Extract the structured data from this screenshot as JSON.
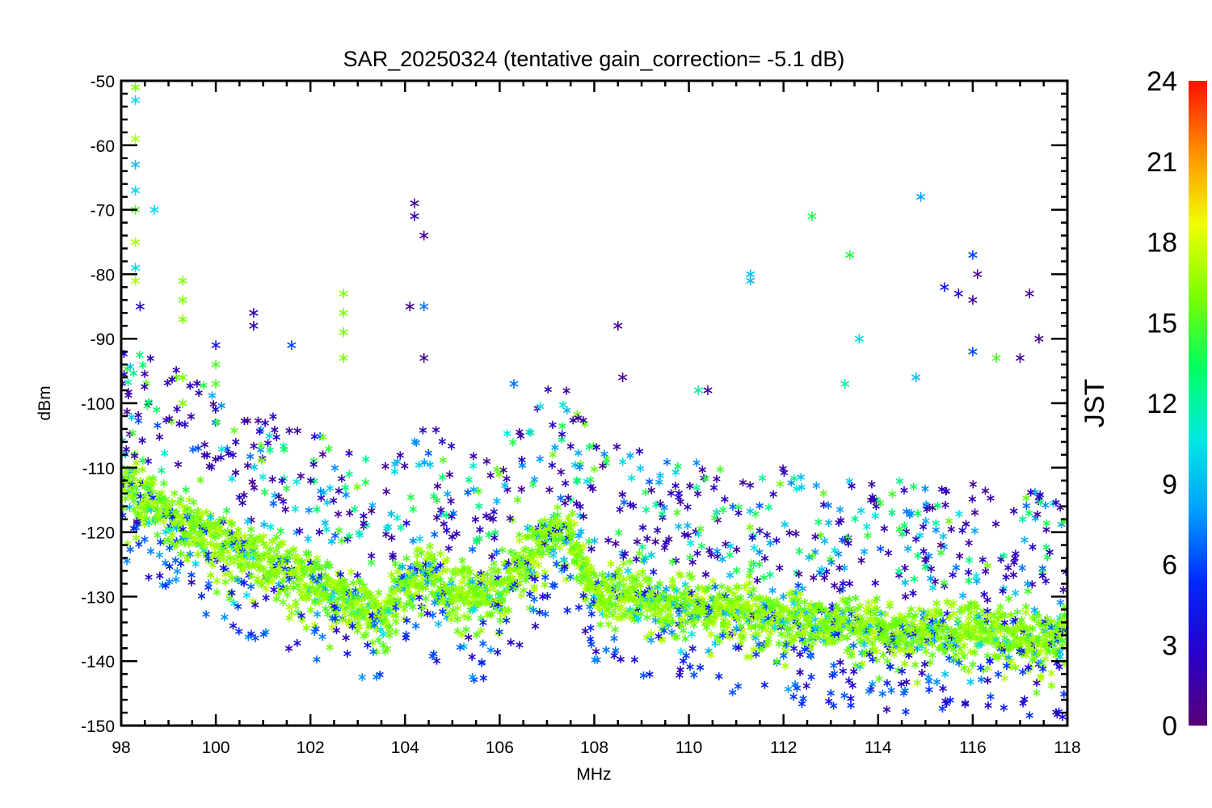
{
  "chart_data": {
    "type": "scatter",
    "title": "SAR_20250324 (tentative gain_correction= -5.1 dB)",
    "xlabel": "MHz",
    "ylabel": "dBm",
    "xlim": [
      98,
      118
    ],
    "ylim": [
      -150,
      -50
    ],
    "xticks": [
      "98",
      "100",
      "102",
      "104",
      "106",
      "108",
      "110",
      "112",
      "114",
      "116",
      "118"
    ],
    "yticks": [
      "-50",
      "-60",
      "-70",
      "-80",
      "-90",
      "-100",
      "-110",
      "-120",
      "-130",
      "-140",
      "-150"
    ],
    "grid": false,
    "marker": "asterisk",
    "colorbar": {
      "label": "JST",
      "range": [
        0,
        24
      ],
      "ticks": [
        "0",
        "3",
        "6",
        "9",
        "12",
        "15",
        "18",
        "21",
        "24"
      ],
      "colormap": "rainbow",
      "colors": [
        "#5a0078",
        "#2800c8",
        "#0028ff",
        "#00a0ff",
        "#00e8e0",
        "#00ff60",
        "#7cff00",
        "#f0ff00",
        "#ff9000",
        "#ff1000"
      ]
    },
    "series": [
      {
        "description": "noise floor (dense band)",
        "points": [
          [
            98.0,
            -112,
            17
          ],
          [
            98.5,
            -115,
            17
          ],
          [
            99.0,
            -117,
            16
          ],
          [
            99.5,
            -119,
            17
          ],
          [
            100.0,
            -121,
            17
          ],
          [
            100.5,
            -123,
            16
          ],
          [
            101.0,
            -124,
            17
          ],
          [
            101.5,
            -126,
            16
          ],
          [
            102.0,
            -127,
            17
          ],
          [
            102.5,
            -129,
            16
          ],
          [
            103.0,
            -131,
            17
          ],
          [
            103.5,
            -133,
            17
          ],
          [
            104.0,
            -128,
            16
          ],
          [
            104.5,
            -126,
            17
          ],
          [
            105.0,
            -129,
            16
          ],
          [
            105.5,
            -130,
            17
          ],
          [
            106.0,
            -129,
            16
          ],
          [
            106.5,
            -124,
            17
          ],
          [
            107.0,
            -120,
            16
          ],
          [
            107.5,
            -121,
            17
          ],
          [
            108.0,
            -129,
            16
          ],
          [
            108.5,
            -129,
            17
          ],
          [
            109.0,
            -130,
            16
          ],
          [
            109.5,
            -131,
            17
          ],
          [
            110.0,
            -131,
            16
          ],
          [
            110.5,
            -132,
            17
          ],
          [
            111.0,
            -132,
            16
          ],
          [
            111.5,
            -133,
            17
          ],
          [
            112.0,
            -133,
            16
          ],
          [
            112.5,
            -134,
            17
          ],
          [
            113.0,
            -134,
            16
          ],
          [
            113.5,
            -134,
            17
          ],
          [
            114.0,
            -135,
            16
          ],
          [
            114.5,
            -135,
            17
          ],
          [
            115.0,
            -135,
            16
          ],
          [
            115.5,
            -135,
            17
          ],
          [
            116.0,
            -135,
            16
          ],
          [
            116.5,
            -136,
            17
          ],
          [
            117.0,
            -136,
            16
          ],
          [
            117.5,
            -136,
            17
          ],
          [
            118.0,
            -136,
            16
          ]
        ]
      },
      {
        "description": "strong stations and outliers",
        "points": [
          [
            98.3,
            -51,
            16
          ],
          [
            98.3,
            -53,
            10
          ],
          [
            98.3,
            -59,
            17
          ],
          [
            98.3,
            -63,
            9
          ],
          [
            98.3,
            -67,
            10
          ],
          [
            98.3,
            -70,
            15
          ],
          [
            98.3,
            -75,
            17
          ],
          [
            98.3,
            -79,
            10
          ],
          [
            98.3,
            -81,
            17
          ],
          [
            98.4,
            -85,
            3
          ],
          [
            98.7,
            -70,
            10
          ],
          [
            99.3,
            -81,
            16
          ],
          [
            99.3,
            -84,
            16
          ],
          [
            99.3,
            -87,
            16
          ],
          [
            99.3,
            -96,
            16
          ],
          [
            99.3,
            -100,
            16
          ],
          [
            100.0,
            -91,
            4
          ],
          [
            100.0,
            -94,
            15
          ],
          [
            100.0,
            -97,
            15
          ],
          [
            100.8,
            -86,
            2
          ],
          [
            100.8,
            -88,
            2
          ],
          [
            101.6,
            -91,
            6
          ],
          [
            102.7,
            -83,
            16
          ],
          [
            102.7,
            -86,
            16
          ],
          [
            102.7,
            -89,
            16
          ],
          [
            102.7,
            -93,
            16
          ],
          [
            104.2,
            -69,
            1
          ],
          [
            104.2,
            -71,
            2
          ],
          [
            104.4,
            -74,
            1
          ],
          [
            104.4,
            -85,
            7
          ],
          [
            104.4,
            -93,
            1
          ],
          [
            104.1,
            -85,
            1
          ],
          [
            106.3,
            -97,
            7
          ],
          [
            108.5,
            -88,
            1
          ],
          [
            108.6,
            -96,
            1
          ],
          [
            110.2,
            -98,
            12
          ],
          [
            110.4,
            -98,
            1
          ],
          [
            111.3,
            -80,
            9
          ],
          [
            111.3,
            -81,
            9
          ],
          [
            112.6,
            -71,
            14
          ],
          [
            113.4,
            -77,
            14
          ],
          [
            113.6,
            -90,
            10
          ],
          [
            114.9,
            -68,
            8
          ],
          [
            115.4,
            -82,
            4
          ],
          [
            115.7,
            -83,
            3
          ],
          [
            116.0,
            -77,
            6
          ],
          [
            116.1,
            -80,
            1
          ],
          [
            116.0,
            -84,
            1
          ],
          [
            117.2,
            -83,
            1
          ],
          [
            117.4,
            -90,
            1
          ],
          [
            117.0,
            -93,
            1
          ],
          [
            116.5,
            -93,
            15
          ],
          [
            116.0,
            -92,
            6
          ],
          [
            114.8,
            -96,
            9
          ],
          [
            113.3,
            -97,
            12
          ]
        ]
      }
    ]
  }
}
